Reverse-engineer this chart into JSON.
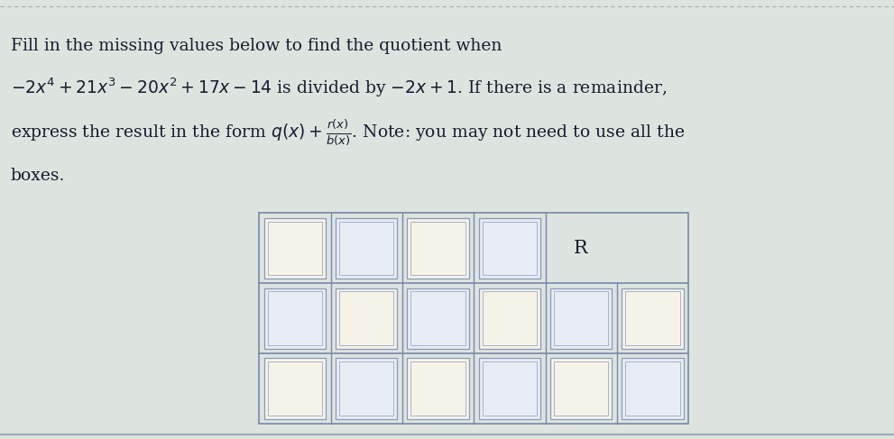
{
  "bg_color": "#d4dde6",
  "page_bg": "#e8ede8",
  "text_color": "#1a1a2e",
  "R_label": "R",
  "box_fill": "#f5f3e8",
  "box_fill_alt": "#e8edf5",
  "box_edge_outer": "#8899bb",
  "box_edge_inner": "#aab0c8",
  "grid_line_color": "#7788aa",
  "font_size_text": 13.5,
  "fig_width": 9.91,
  "fig_height": 4.87,
  "dpi": 100,
  "num_cols": 6,
  "num_rows": 3
}
